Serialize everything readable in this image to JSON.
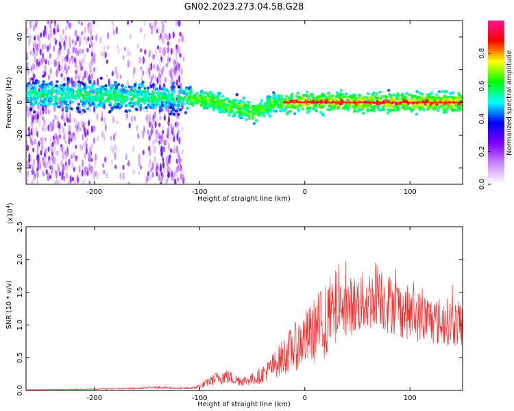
{
  "title": "GN02.2023.273.04.58.G28",
  "chart_data": [
    {
      "type": "heatmap",
      "panel": "spectrogram",
      "xlabel": "Height of straight line (km)",
      "ylabel": "Frequency (Hz)",
      "xlim": [
        -265,
        150
      ],
      "ylim": [
        -50,
        50
      ],
      "xticks": [
        -200,
        -100,
        0,
        100
      ],
      "xtick_labels": [
        "-200",
        "-100",
        "0",
        "100"
      ],
      "yticks": [
        -40,
        -20,
        0,
        20,
        40
      ],
      "ytick_labels": [
        "-40",
        "-20",
        "0",
        "20",
        "40"
      ],
      "ridge_frequency": {
        "x": [
          -265,
          -200,
          -150,
          -110,
          -90,
          -75,
          -60,
          -50,
          -40,
          -30,
          -20,
          0,
          50,
          100,
          150
        ],
        "y": [
          5,
          4,
          3,
          3,
          1,
          -2,
          -4,
          -6,
          -4,
          -1,
          0,
          0,
          0,
          0,
          0
        ]
      },
      "colorbar": {
        "label": "Normalized spectral amplitude",
        "range": [
          0,
          1
        ],
        "ticks": [
          0,
          0.2,
          0.4,
          0.6,
          0.8
        ],
        "tick_labels": [
          "0.0",
          "0.2",
          "0.4",
          "0.6",
          "0.8"
        ],
        "colors": [
          "#ffffff",
          "#cc88ff",
          "#7f00ff",
          "#0000ff",
          "#00ffff",
          "#00ff00",
          "#ffff00",
          "#ff0000",
          "#ff1493"
        ]
      }
    },
    {
      "type": "line",
      "panel": "snr",
      "xlabel": "Height of straight line (km)",
      "ylabel": "SNR (10 * v/v)",
      "scale_label": "(x10",
      "scale_exponent": "4",
      "scale_close": ")",
      "xlim": [
        -265,
        150
      ],
      "ylim": [
        0,
        2.5
      ],
      "xticks": [
        -200,
        -100,
        0,
        100
      ],
      "xtick_labels": [
        "-200",
        "-100",
        "0",
        "100"
      ],
      "yticks": [
        0,
        0.5,
        1.0,
        1.5,
        2.0,
        2.5
      ],
      "ytick_labels": [
        "0.0",
        "0.5",
        "1.0",
        "1.5",
        "2.0",
        "2.5"
      ],
      "series": [
        {
          "name": "SNR",
          "color": "#ee3333",
          "x": [
            -265,
            -200,
            -160,
            -140,
            -120,
            -105,
            -95,
            -85,
            -75,
            -65,
            -55,
            -45,
            -35,
            -25,
            -15,
            -5,
            5,
            15,
            25,
            35,
            45,
            55,
            65,
            70,
            75,
            85,
            95,
            105,
            115,
            125,
            135,
            150
          ],
          "y": [
            0.01,
            0.02,
            0.03,
            0.05,
            0.03,
            0.04,
            0.1,
            0.18,
            0.22,
            0.16,
            0.15,
            0.2,
            0.3,
            0.45,
            0.6,
            0.72,
            0.85,
            1.0,
            1.15,
            1.25,
            1.3,
            1.35,
            1.4,
            1.6,
            1.35,
            1.3,
            1.2,
            1.15,
            1.1,
            1.05,
            1.05,
            1.0
          ]
        }
      ]
    }
  ]
}
